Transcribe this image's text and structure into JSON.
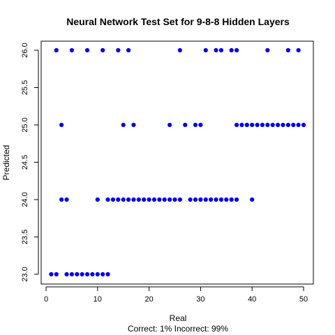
{
  "chart_data": {
    "type": "scatter",
    "title": "Neural Network Test Set for 9-8-8 Hidden Layers",
    "xlabel": "Real",
    "ylabel": "Predicted",
    "subtitle": "Correct: 1% Incorrect: 99%",
    "xlim": [
      0,
      50
    ],
    "ylim": [
      23.0,
      26.0
    ],
    "x_ticks": [
      0,
      10,
      20,
      30,
      40,
      50
    ],
    "y_ticks": [
      23.0,
      23.5,
      24.0,
      24.5,
      25.0,
      25.5,
      26.0
    ],
    "color": "#0000ee",
    "grid": false,
    "series": [
      {
        "points": [
          [
            2,
            26
          ],
          [
            5,
            26
          ],
          [
            8,
            26
          ],
          [
            11,
            26
          ],
          [
            14,
            26
          ],
          [
            16,
            26
          ],
          [
            26,
            26
          ],
          [
            31,
            26
          ],
          [
            33,
            26
          ],
          [
            34,
            26
          ],
          [
            36,
            26
          ],
          [
            37,
            26
          ],
          [
            43,
            26
          ],
          [
            47,
            26
          ],
          [
            49,
            26
          ],
          [
            3,
            25
          ],
          [
            15,
            25
          ],
          [
            17,
            25
          ],
          [
            24,
            25
          ],
          [
            27,
            25
          ],
          [
            29,
            25
          ],
          [
            30,
            25
          ],
          [
            37,
            25
          ],
          [
            38,
            25
          ],
          [
            39,
            25
          ],
          [
            40,
            25
          ],
          [
            41,
            25
          ],
          [
            42,
            25
          ],
          [
            43,
            25
          ],
          [
            44,
            25
          ],
          [
            45,
            25
          ],
          [
            46,
            25
          ],
          [
            47,
            25
          ],
          [
            48,
            25
          ],
          [
            49,
            25
          ],
          [
            50,
            25
          ],
          [
            3,
            24
          ],
          [
            4,
            24
          ],
          [
            10,
            24
          ],
          [
            12,
            24
          ],
          [
            13,
            24
          ],
          [
            14,
            24
          ],
          [
            15,
            24
          ],
          [
            16,
            24
          ],
          [
            17,
            24
          ],
          [
            18,
            24
          ],
          [
            19,
            24
          ],
          [
            20,
            24
          ],
          [
            21,
            24
          ],
          [
            22,
            24
          ],
          [
            23,
            24
          ],
          [
            24,
            24
          ],
          [
            25,
            24
          ],
          [
            26,
            24
          ],
          [
            28,
            24
          ],
          [
            29,
            24
          ],
          [
            30,
            24
          ],
          [
            31,
            24
          ],
          [
            32,
            24
          ],
          [
            33,
            24
          ],
          [
            34,
            24
          ],
          [
            35,
            24
          ],
          [
            36,
            24
          ],
          [
            37,
            24
          ],
          [
            40,
            24
          ],
          [
            1,
            23
          ],
          [
            2,
            23
          ],
          [
            4,
            23
          ],
          [
            5,
            23
          ],
          [
            6,
            23
          ],
          [
            7,
            23
          ],
          [
            8,
            23
          ],
          [
            9,
            23
          ],
          [
            10,
            23
          ],
          [
            11,
            23
          ],
          [
            12,
            23
          ]
        ]
      }
    ]
  }
}
